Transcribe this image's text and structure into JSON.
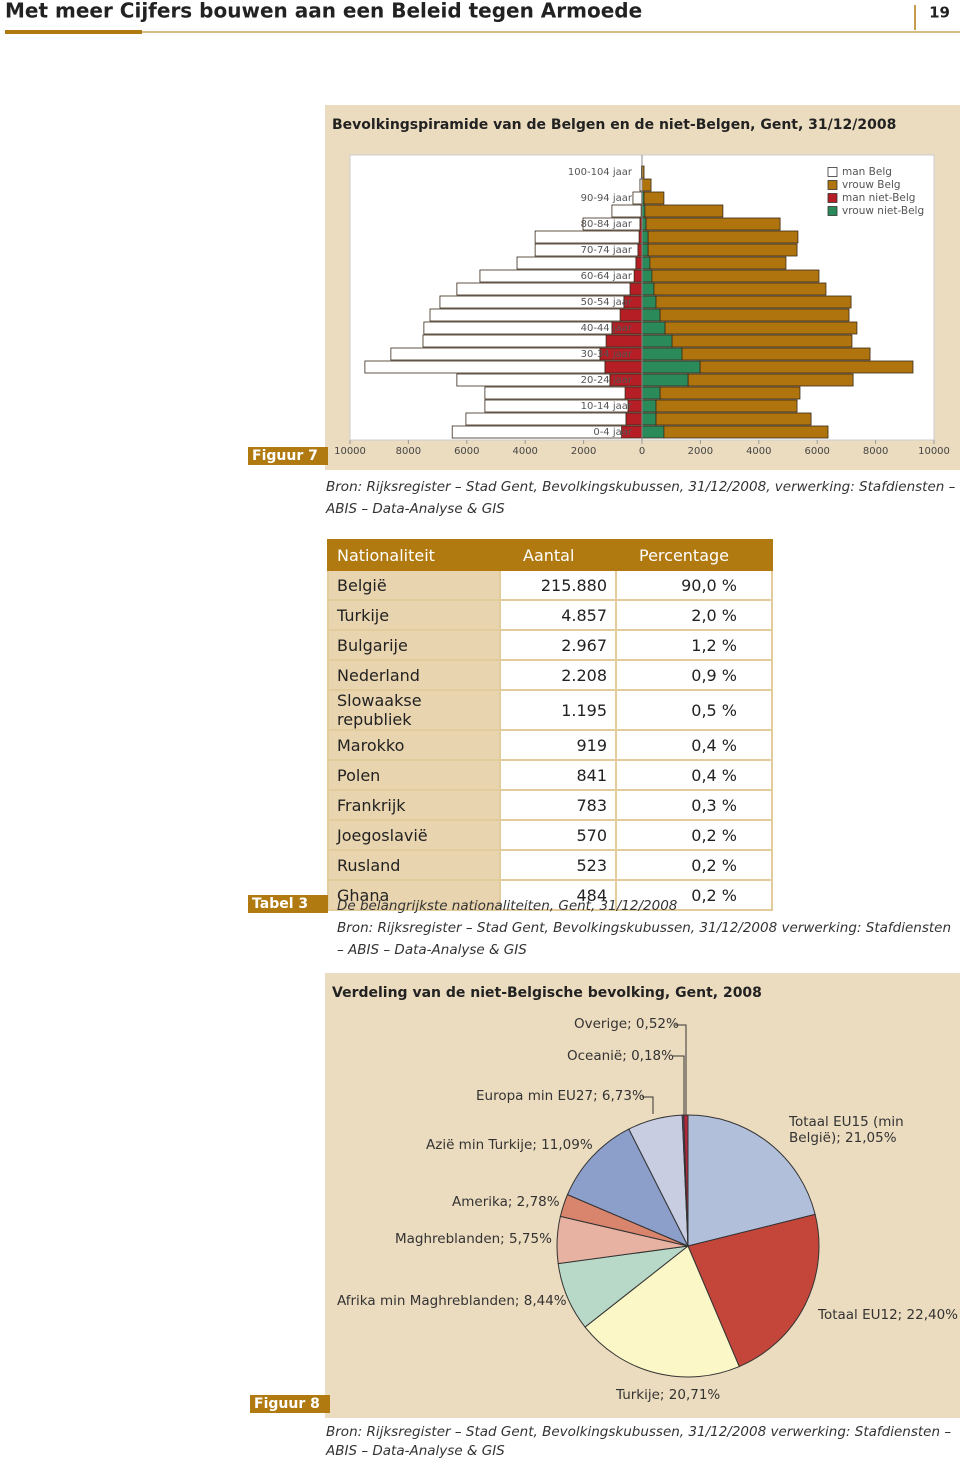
{
  "header": {
    "title": "Met meer Cijfers bouwen aan een Beleid tegen Armoede",
    "page": "19"
  },
  "chart_data": [
    {
      "type": "pyramid",
      "title": "Bevolkingspiramide van de Belgen en de niet-Belgen, Gent, 31/12/2008",
      "label": "Figuur 7",
      "source": "Bron: Rijksregister – Stad Gent, Bevolkingskubussen, 31/12/2008, verwerking: Stafdiensten – ABIS – Data-Analyse & GIS",
      "categories": [
        "0-4 jaar",
        null,
        "10-14 jaar",
        null,
        "20-24 jaar",
        null,
        "30-34 jaar",
        null,
        "40-44 jaar",
        null,
        "50-54 jaar",
        null,
        "60-64 jaar",
        null,
        "70-74 jaar",
        null,
        "80-84 jaar",
        null,
        "90-94 jaar",
        null,
        "100-104 jaar"
      ],
      "series": [
        {
          "name": "man Belg",
          "color": "#ffffff",
          "values": [
            -5800,
            -5480,
            -4900,
            -4800,
            -5240,
            -8220,
            -7160,
            -6270,
            -6440,
            -6510,
            -6300,
            -5930,
            -5280,
            -4070,
            -3520,
            -3560,
            -1950,
            -1000,
            -300,
            -70,
            -20
          ]
        },
        {
          "name": "vrouw Belg",
          "color": "#b0740e",
          "values": [
            5620,
            5310,
            4830,
            4790,
            5650,
            7290,
            6440,
            6160,
            6570,
            6470,
            6680,
            5890,
            5720,
            4660,
            5100,
            5130,
            4590,
            2670,
            680,
            310,
            70
          ]
        },
        {
          "name": "man niet-Belg",
          "color": "#b41e24",
          "values": [
            -700,
            -550,
            -480,
            -580,
            -1100,
            -1270,
            -1440,
            -1230,
            -1030,
            -750,
            -620,
            -410,
            -270,
            -210,
            -140,
            -100,
            -70,
            -30,
            -10,
            0,
            0
          ]
        },
        {
          "name": "vrouw niet-Belg",
          "color": "#2a8a5a",
          "values": [
            750,
            480,
            480,
            620,
            1580,
            1990,
            1370,
            1030,
            790,
            620,
            480,
            410,
            340,
            270,
            210,
            210,
            140,
            100,
            70,
            0,
            0
          ]
        }
      ],
      "xlim": [
        -10000,
        10000
      ],
      "xticks": [
        {
          "value": -10000,
          "label": "10000"
        },
        {
          "value": -8000,
          "label": "8000"
        },
        {
          "value": -6000,
          "label": "6000"
        },
        {
          "value": -4000,
          "label": "4000"
        },
        {
          "value": -2000,
          "label": "2000"
        },
        0,
        2000,
        4000,
        6000,
        8000,
        10000
      ],
      "legend": "top-right"
    },
    {
      "type": "pie",
      "title": "Verdeling van de niet-Belgische bevolking, Gent, 2008",
      "label": "Figuur 8",
      "source": "Bron: Rijksregister – Stad Gent, Bevolkingskubussen, 31/12/2008 verwerking: Stafdiensten – ABIS – Data-Analyse & GIS",
      "values": [
        21.05,
        22.4,
        20.71,
        8.44,
        5.75,
        2.78,
        11.09,
        6.73,
        0.18,
        0.52
      ],
      "value_labels": [
        "Totaal EU15 (min België); 21,05%",
        "Totaal EU12; 22,40%",
        "Turkije; 20,71%",
        "Afrika min Maghreblanden; 8,44%",
        "Maghreblanden; 5,75%",
        "Amerika; 2,78%",
        "Azië min Turkije; 11,09%",
        "Europa min EU27; 6,73%",
        "Oceanië; 0,18%",
        "Overige; 0,52%"
      ],
      "colors": [
        "#b2bfdb",
        "#c4463a",
        "#fcf7c6",
        "#b8d8c8",
        "#e8b2a2",
        "#d9846c",
        "#8c9fca",
        "#c9cde2",
        "#6b5f9c",
        "#b0283a"
      ]
    }
  ],
  "table": {
    "label": "Tabel 3",
    "header": [
      "Nationaliteit",
      "Aantal",
      "Percentage"
    ],
    "rows": [
      [
        "België",
        "215.880",
        "90,0 %"
      ],
      [
        "Turkije",
        "4.857",
        "2,0 %"
      ],
      [
        "Bulgarije",
        "2.967",
        "1,2 %"
      ],
      [
        "Nederland",
        "2.208",
        "0,9 %"
      ],
      [
        "Slowaakse republiek",
        "1.195",
        "0,5 %"
      ],
      [
        "Marokko",
        "919",
        "0,4 %"
      ],
      [
        "Polen",
        "841",
        "0,4 %"
      ],
      [
        "Frankrijk",
        "783",
        "0,3 %"
      ],
      [
        "Joegoslavië",
        "570",
        "0,2 %"
      ],
      [
        "Rusland",
        "523",
        "0,2 %"
      ],
      [
        "Ghana",
        "484",
        "0,2 %"
      ]
    ],
    "caption": "De belangrijkste nationaliteiten, Gent, 31/12/2008",
    "source": "Bron: Rijksregister – Stad Gent, Bevolkingskubussen, 31/12/2008 verwerking: Stafdiensten – ABIS – Data-Analyse & GIS"
  }
}
